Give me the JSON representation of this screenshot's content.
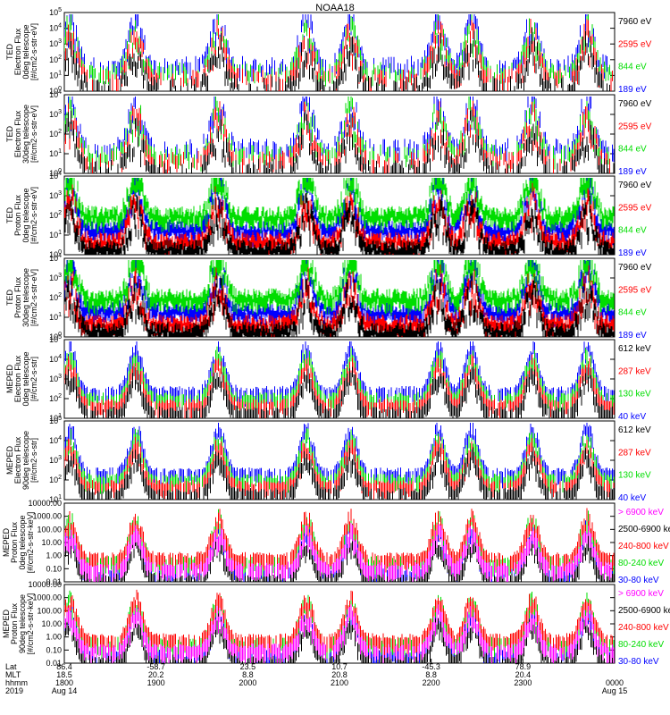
{
  "title": "NOAA18",
  "colors": {
    "blue": "#0000ff",
    "red": "#ff0000",
    "green": "#00dd00",
    "black": "#000000",
    "magenta": "#ff00ff"
  },
  "chart_data": [
    {
      "type": "line",
      "ylabel": [
        "TED",
        "Electron Flux",
        "0deg telescope",
        "[#/cm2-s-str-eV]"
      ],
      "y_scale": "log",
      "ytick_labels": [
        "10^0",
        "10^1",
        "10^2",
        "10^3",
        "10^4",
        "10^5"
      ],
      "series": [
        {
          "name": "7960 eV",
          "color": "#000000"
        },
        {
          "name": "2595 eV",
          "color": "#ff0000"
        },
        {
          "name": "844 eV",
          "color": "#00dd00"
        },
        {
          "name": "189 eV",
          "color": "#0000ff"
        }
      ]
    },
    {
      "type": "line",
      "ylabel": [
        "TED",
        "Electron Flux",
        "30deg telescope",
        "[#/cm2-s-str-eV]"
      ],
      "y_scale": "log",
      "ytick_labels": [
        "10^0",
        "10^1",
        "10^2",
        "10^3",
        "10^4"
      ],
      "series": [
        {
          "name": "7960 eV",
          "color": "#000000"
        },
        {
          "name": "2595 eV",
          "color": "#ff0000"
        },
        {
          "name": "844 eV",
          "color": "#00dd00"
        },
        {
          "name": "189 eV",
          "color": "#0000ff"
        }
      ]
    },
    {
      "type": "line",
      "ylabel": [
        "TED",
        "Proton Flux",
        "0deg telescope",
        "[#/cm2-s-str-eV]"
      ],
      "y_scale": "log",
      "ytick_labels": [
        "10^0",
        "10^1",
        "10^2",
        "10^3",
        "10^4"
      ],
      "series": [
        {
          "name": "7960 eV",
          "color": "#000000"
        },
        {
          "name": "2595 eV",
          "color": "#ff0000"
        },
        {
          "name": "844 eV",
          "color": "#00dd00"
        },
        {
          "name": "189 eV",
          "color": "#0000ff"
        }
      ]
    },
    {
      "type": "line",
      "ylabel": [
        "TED",
        "Proton Flux",
        "30deg telescope",
        "[#/cm2-s-str-eV]"
      ],
      "y_scale": "log",
      "ytick_labels": [
        "10^0",
        "10^1",
        "10^2",
        "10^3",
        "10^4"
      ],
      "series": [
        {
          "name": "7960 eV",
          "color": "#000000"
        },
        {
          "name": "2595 eV",
          "color": "#ff0000"
        },
        {
          "name": "844 eV",
          "color": "#00dd00"
        },
        {
          "name": "189 eV",
          "color": "#0000ff"
        }
      ]
    },
    {
      "type": "line",
      "ylabel": [
        "MEPED",
        "Electron Flux",
        "0deg telescope",
        "[#/cm2-s-str]"
      ],
      "y_scale": "log",
      "ytick_labels": [
        "10^1",
        "10^2",
        "10^3",
        "10^4",
        "10^5"
      ],
      "series": [
        {
          "name": "612 keV",
          "color": "#000000"
        },
        {
          "name": "287 keV",
          "color": "#ff0000"
        },
        {
          "name": "130 keV",
          "color": "#00dd00"
        },
        {
          "name": "40 keV",
          "color": "#0000ff"
        }
      ]
    },
    {
      "type": "line",
      "ylabel": [
        "MEPED",
        "Electron Flux",
        "90deg telescope",
        "[#/cm2-s-str]"
      ],
      "y_scale": "log",
      "ytick_labels": [
        "10^1",
        "10^2",
        "10^3",
        "10^4",
        "10^5"
      ],
      "series": [
        {
          "name": "612 keV",
          "color": "#000000"
        },
        {
          "name": "287 keV",
          "color": "#ff0000"
        },
        {
          "name": "130 keV",
          "color": "#00dd00"
        },
        {
          "name": "40 keV",
          "color": "#0000ff"
        }
      ]
    },
    {
      "type": "line",
      "ylabel": [
        "MEPED",
        "Proton Flux",
        "0deg telescope",
        "[#/cm2-s-str-keV]"
      ],
      "y_scale": "log",
      "ytick_labels": [
        "0.01",
        "0.10",
        "1.00",
        "10.00",
        "100.00",
        "1000.00",
        "10000.00"
      ],
      "series": [
        {
          "name": "> 6900 keV",
          "color": "#ff00ff"
        },
        {
          "name": "2500-6900 keV",
          "color": "#000000"
        },
        {
          "name": "240-800 keV",
          "color": "#ff0000"
        },
        {
          "name": "80-240 keV",
          "color": "#00dd00"
        },
        {
          "name": "30-80 keV",
          "color": "#0000ff"
        }
      ]
    },
    {
      "type": "line",
      "ylabel": [
        "MEPED",
        "Proton Flux",
        "90deg telescope",
        "[#/cm2-s-str-keV]"
      ],
      "y_scale": "log",
      "ytick_labels": [
        "0.01",
        "0.10",
        "1.00",
        "10.00",
        "100.00",
        "1000.00",
        "10000.00"
      ],
      "series": [
        {
          "name": "> 6900 keV",
          "color": "#ff00ff"
        },
        {
          "name": "2500-6900 keV",
          "color": "#000000"
        },
        {
          "name": "240-800 keV",
          "color": "#ff0000"
        },
        {
          "name": "80-240 keV",
          "color": "#00dd00"
        },
        {
          "name": "30-80 keV",
          "color": "#0000ff"
        }
      ]
    }
  ],
  "x_axis": {
    "row_labels": [
      "Lat",
      "MLT",
      "hhmm",
      "2019"
    ],
    "ticks": [
      {
        "lat": "86.4",
        "mlt": "18.5",
        "hhmm": "1800",
        "date": "Aug 14"
      },
      {
        "lat": "-58.7",
        "mlt": "20.2",
        "hhmm": "1900",
        "date": ""
      },
      {
        "lat": "23.5",
        "mlt": "8.8",
        "hhmm": "2000",
        "date": ""
      },
      {
        "lat": "10.7",
        "mlt": "20.8",
        "hhmm": "2100",
        "date": ""
      },
      {
        "lat": "-45.3",
        "mlt": "8.8",
        "hhmm": "2200",
        "date": ""
      },
      {
        "lat": "78.9",
        "mlt": "20.4",
        "hhmm": "2300",
        "date": ""
      },
      {
        "lat": "",
        "mlt": "",
        "hhmm": "0000",
        "date": "Aug 15"
      }
    ]
  }
}
